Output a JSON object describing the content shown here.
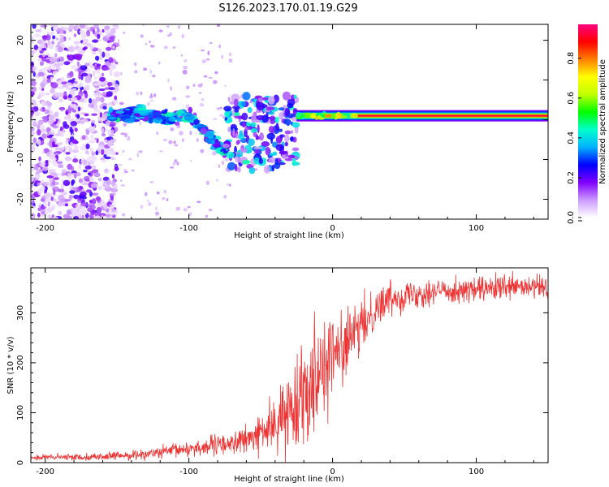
{
  "title": "S126.2023.170.01.19.G29",
  "chart_data": [
    {
      "type": "heatmap",
      "xlabel": "Height of straight line (km)",
      "ylabel": "Frequency (Hz)",
      "xlim": [
        -210,
        150
      ],
      "ylim": [
        -25,
        24
      ],
      "xticks": [
        -200,
        -100,
        0,
        100
      ],
      "yticks": [
        -20,
        -10,
        0,
        10,
        20
      ],
      "colorbar": {
        "label": "Normalized spectral amplitude",
        "range": [
          0.0,
          0.97
        ],
        "ticks": [
          0.0,
          0.2,
          0.4,
          0.6,
          0.8
        ],
        "colors": [
          "#ffffff",
          "#cc99ff",
          "#8000ff",
          "#0000ff",
          "#00b0ff",
          "#00ffcc",
          "#00ff00",
          "#c0ff00",
          "#ffff00",
          "#ff8000",
          "#ff0000",
          "#ff0080"
        ]
      },
      "features": [
        {
          "name": "noise",
          "x_range": [
            -210,
            -150
          ],
          "freq_range": [
            -25,
            24
          ],
          "amplitude": 0.15
        },
        {
          "name": "fragmented-tone",
          "x_range": [
            -155,
            -75
          ],
          "freq_at_start": 1,
          "freq_at_end": -8,
          "amplitude": 0.45
        },
        {
          "name": "scattered-tone",
          "x_range": [
            -75,
            -25
          ],
          "freq_range": [
            -13,
            6
          ],
          "amplitude": 0.35
        },
        {
          "name": "carrier-tone",
          "x_range": [
            -25,
            150
          ],
          "freq": 1,
          "amplitude": 0.95
        }
      ]
    },
    {
      "type": "line",
      "xlabel": "Height of straight line (km)",
      "ylabel": "SNR (10 * v/v)",
      "xlim": [
        -210,
        150
      ],
      "ylim": [
        0,
        390
      ],
      "xticks": [
        -200,
        -100,
        0,
        100
      ],
      "yticks": [
        0,
        100,
        200,
        300
      ],
      "color": "#ee3333",
      "trend": {
        "x": [
          -210,
          -160,
          -140,
          -120,
          -100,
          -80,
          -60,
          -40,
          -30,
          -20,
          -10,
          0,
          10,
          20,
          30,
          40,
          60,
          80,
          100,
          120,
          150
        ],
        "y": [
          10,
          12,
          15,
          20,
          28,
          35,
          45,
          75,
          105,
          150,
          190,
          215,
          240,
          270,
          310,
          330,
          340,
          345,
          345,
          350,
          350
        ]
      },
      "noise_amplitude": {
        "x": [
          -210,
          -160,
          -130,
          -100,
          -70,
          -50,
          -35,
          -25,
          -15,
          -5,
          5,
          20,
          40,
          80,
          150
        ],
        "y": [
          6,
          7,
          10,
          16,
          22,
          35,
          60,
          90,
          110,
          100,
          70,
          50,
          32,
          25,
          25
        ]
      }
    }
  ]
}
